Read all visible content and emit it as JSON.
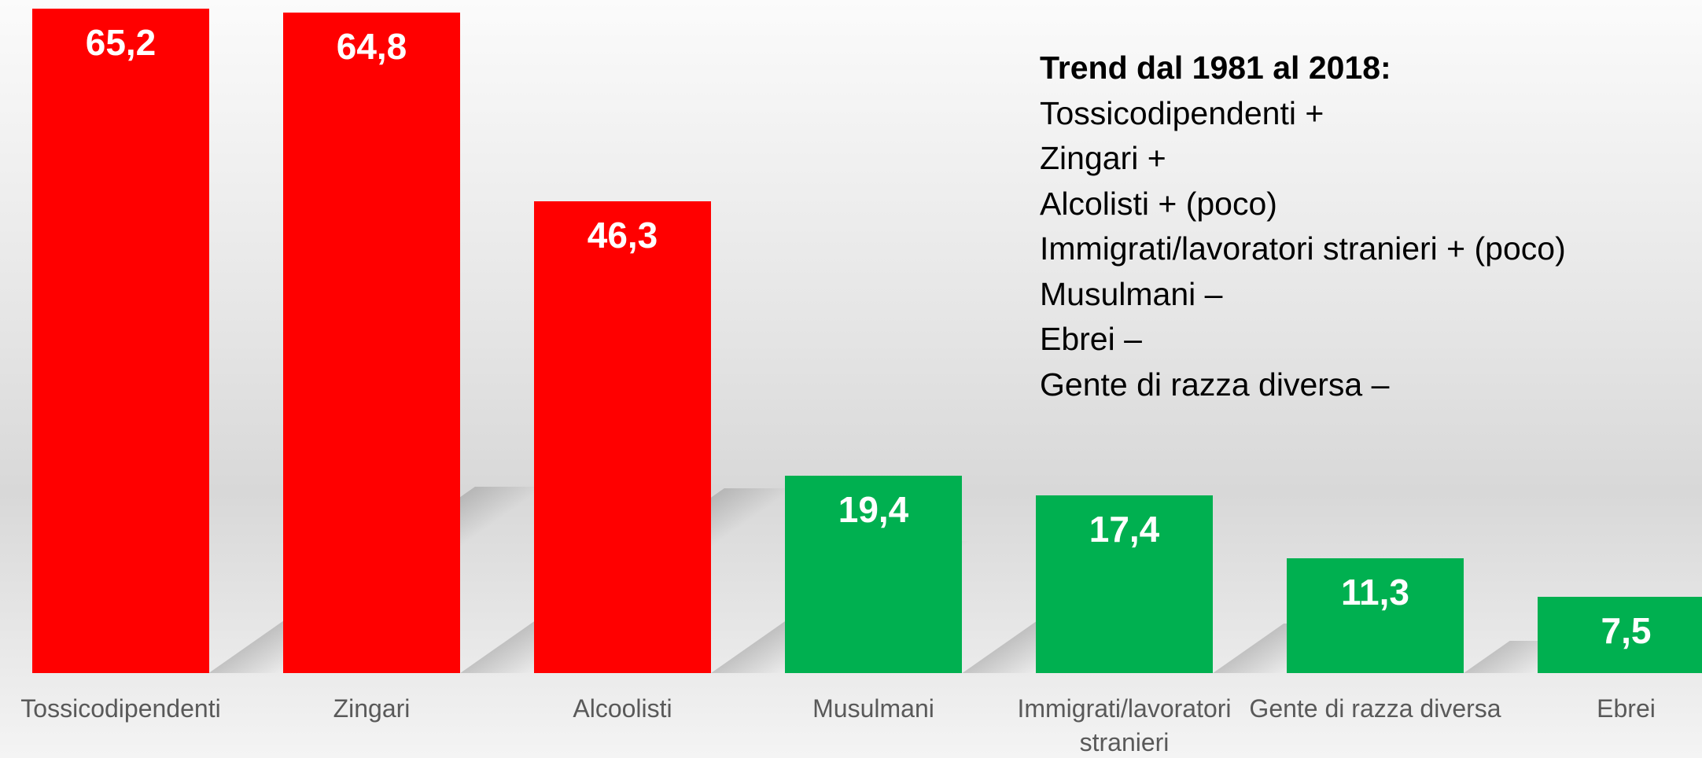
{
  "chart_data": {
    "type": "bar",
    "categories": [
      "Tossicodipendenti",
      "Zingari",
      "Alcoolisti",
      "Musulmani",
      "Immigrati/lavoratori stranieri",
      "Gente di razza diversa",
      "Ebrei"
    ],
    "values": [
      65.2,
      64.8,
      46.3,
      19.4,
      17.4,
      11.3,
      7.5
    ],
    "value_labels": [
      "65,2",
      "64,8",
      "46,3",
      "19,4",
      "17,4",
      "11,3",
      "7,5"
    ],
    "colors": [
      "#ff0000",
      "#ff0000",
      "#ff0000",
      "#00b050",
      "#00b050",
      "#00b050",
      "#00b050"
    ],
    "annotation": {
      "title": "Trend dal 1981 al 2018:",
      "lines": [
        "Tossicodipendenti +",
        "Zingari +",
        "Alcolisti + (poco)",
        "Immigrati/lavoratori stranieri + (poco)",
        "Musulmani –",
        "Ebrei –",
        "Gente di razza diversa –"
      ]
    }
  }
}
